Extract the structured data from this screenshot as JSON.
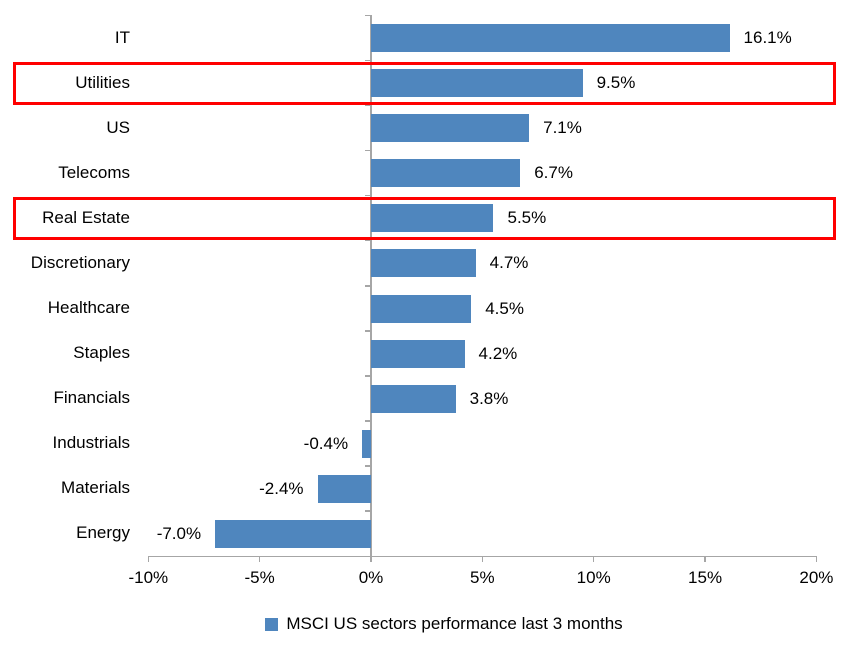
{
  "chart_data": {
    "type": "bar",
    "orientation": "horizontal",
    "categories": [
      "IT",
      "Utilities",
      "US",
      "Telecoms",
      "Real Estate",
      "Discretionary",
      "Healthcare",
      "Staples",
      "Financials",
      "Industrials",
      "Materials",
      "Energy"
    ],
    "values": [
      16.1,
      9.5,
      7.1,
      6.7,
      5.5,
      4.7,
      4.5,
      4.2,
      3.8,
      -0.4,
      -2.4,
      -7.0
    ],
    "value_labels": [
      "16.1%",
      "9.5%",
      "7.1%",
      "6.7%",
      "5.5%",
      "4.7%",
      "4.5%",
      "4.2%",
      "3.8%",
      "-0.4%",
      "-2.4%",
      "-7.0%"
    ],
    "highlighted_categories": [
      "Utilities",
      "Real Estate"
    ],
    "x_axis": {
      "range": [
        -10,
        20
      ],
      "ticks": [
        -10,
        -5,
        0,
        5,
        10,
        15,
        20
      ],
      "tick_labels": [
        "-10%",
        "-5%",
        "0%",
        "5%",
        "10%",
        "15%",
        "20%"
      ]
    },
    "legend": {
      "label": "MSCI US sectors performance last 3 months",
      "position": "bottom"
    },
    "grid": false,
    "colors": {
      "bar": "#4f86be",
      "highlight_box": "#ff0000",
      "axis": "#a6a6a6",
      "text": "#000000",
      "background": "#ffffff"
    }
  }
}
